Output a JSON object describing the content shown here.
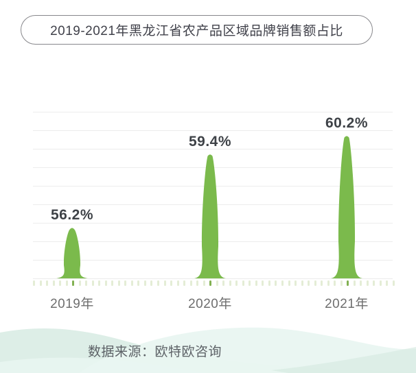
{
  "title_box": {
    "label": "2019-2021年黑龙江省农产品区域品牌销售额占比"
  },
  "source": {
    "label": "数据来源：欧特欧咨询"
  },
  "colors": {
    "peak_green": "#7bba4c",
    "gridline": "#ececec",
    "tick": "#e4edd6",
    "tick_active": "#82b152",
    "value_label": "#3e4247",
    "axis_label": "#6e6e6e",
    "title_text": "#40414a",
    "pill_border": "#87878b",
    "source_text": "#5d6267",
    "wave_mid": "#ddeee7",
    "wave_light": "#e9f6f1",
    "wave_deep": "#d6eae1"
  },
  "chart_data": {
    "type": "bar",
    "shape": "peak-spike",
    "title": "2019-2021年黑龙江省农产品区域品牌销售额占比",
    "categories": [
      "2019年",
      "2020年",
      "2021年"
    ],
    "values": [
      56.2,
      59.4,
      60.2
    ],
    "value_labels": [
      "56.2%",
      "59.4%",
      "60.2%"
    ],
    "unit": "%",
    "ylim": [
      54,
      61.7
    ],
    "grid": "horizontal-only",
    "legend": false,
    "source": "数据来源：欧特欧咨询"
  }
}
